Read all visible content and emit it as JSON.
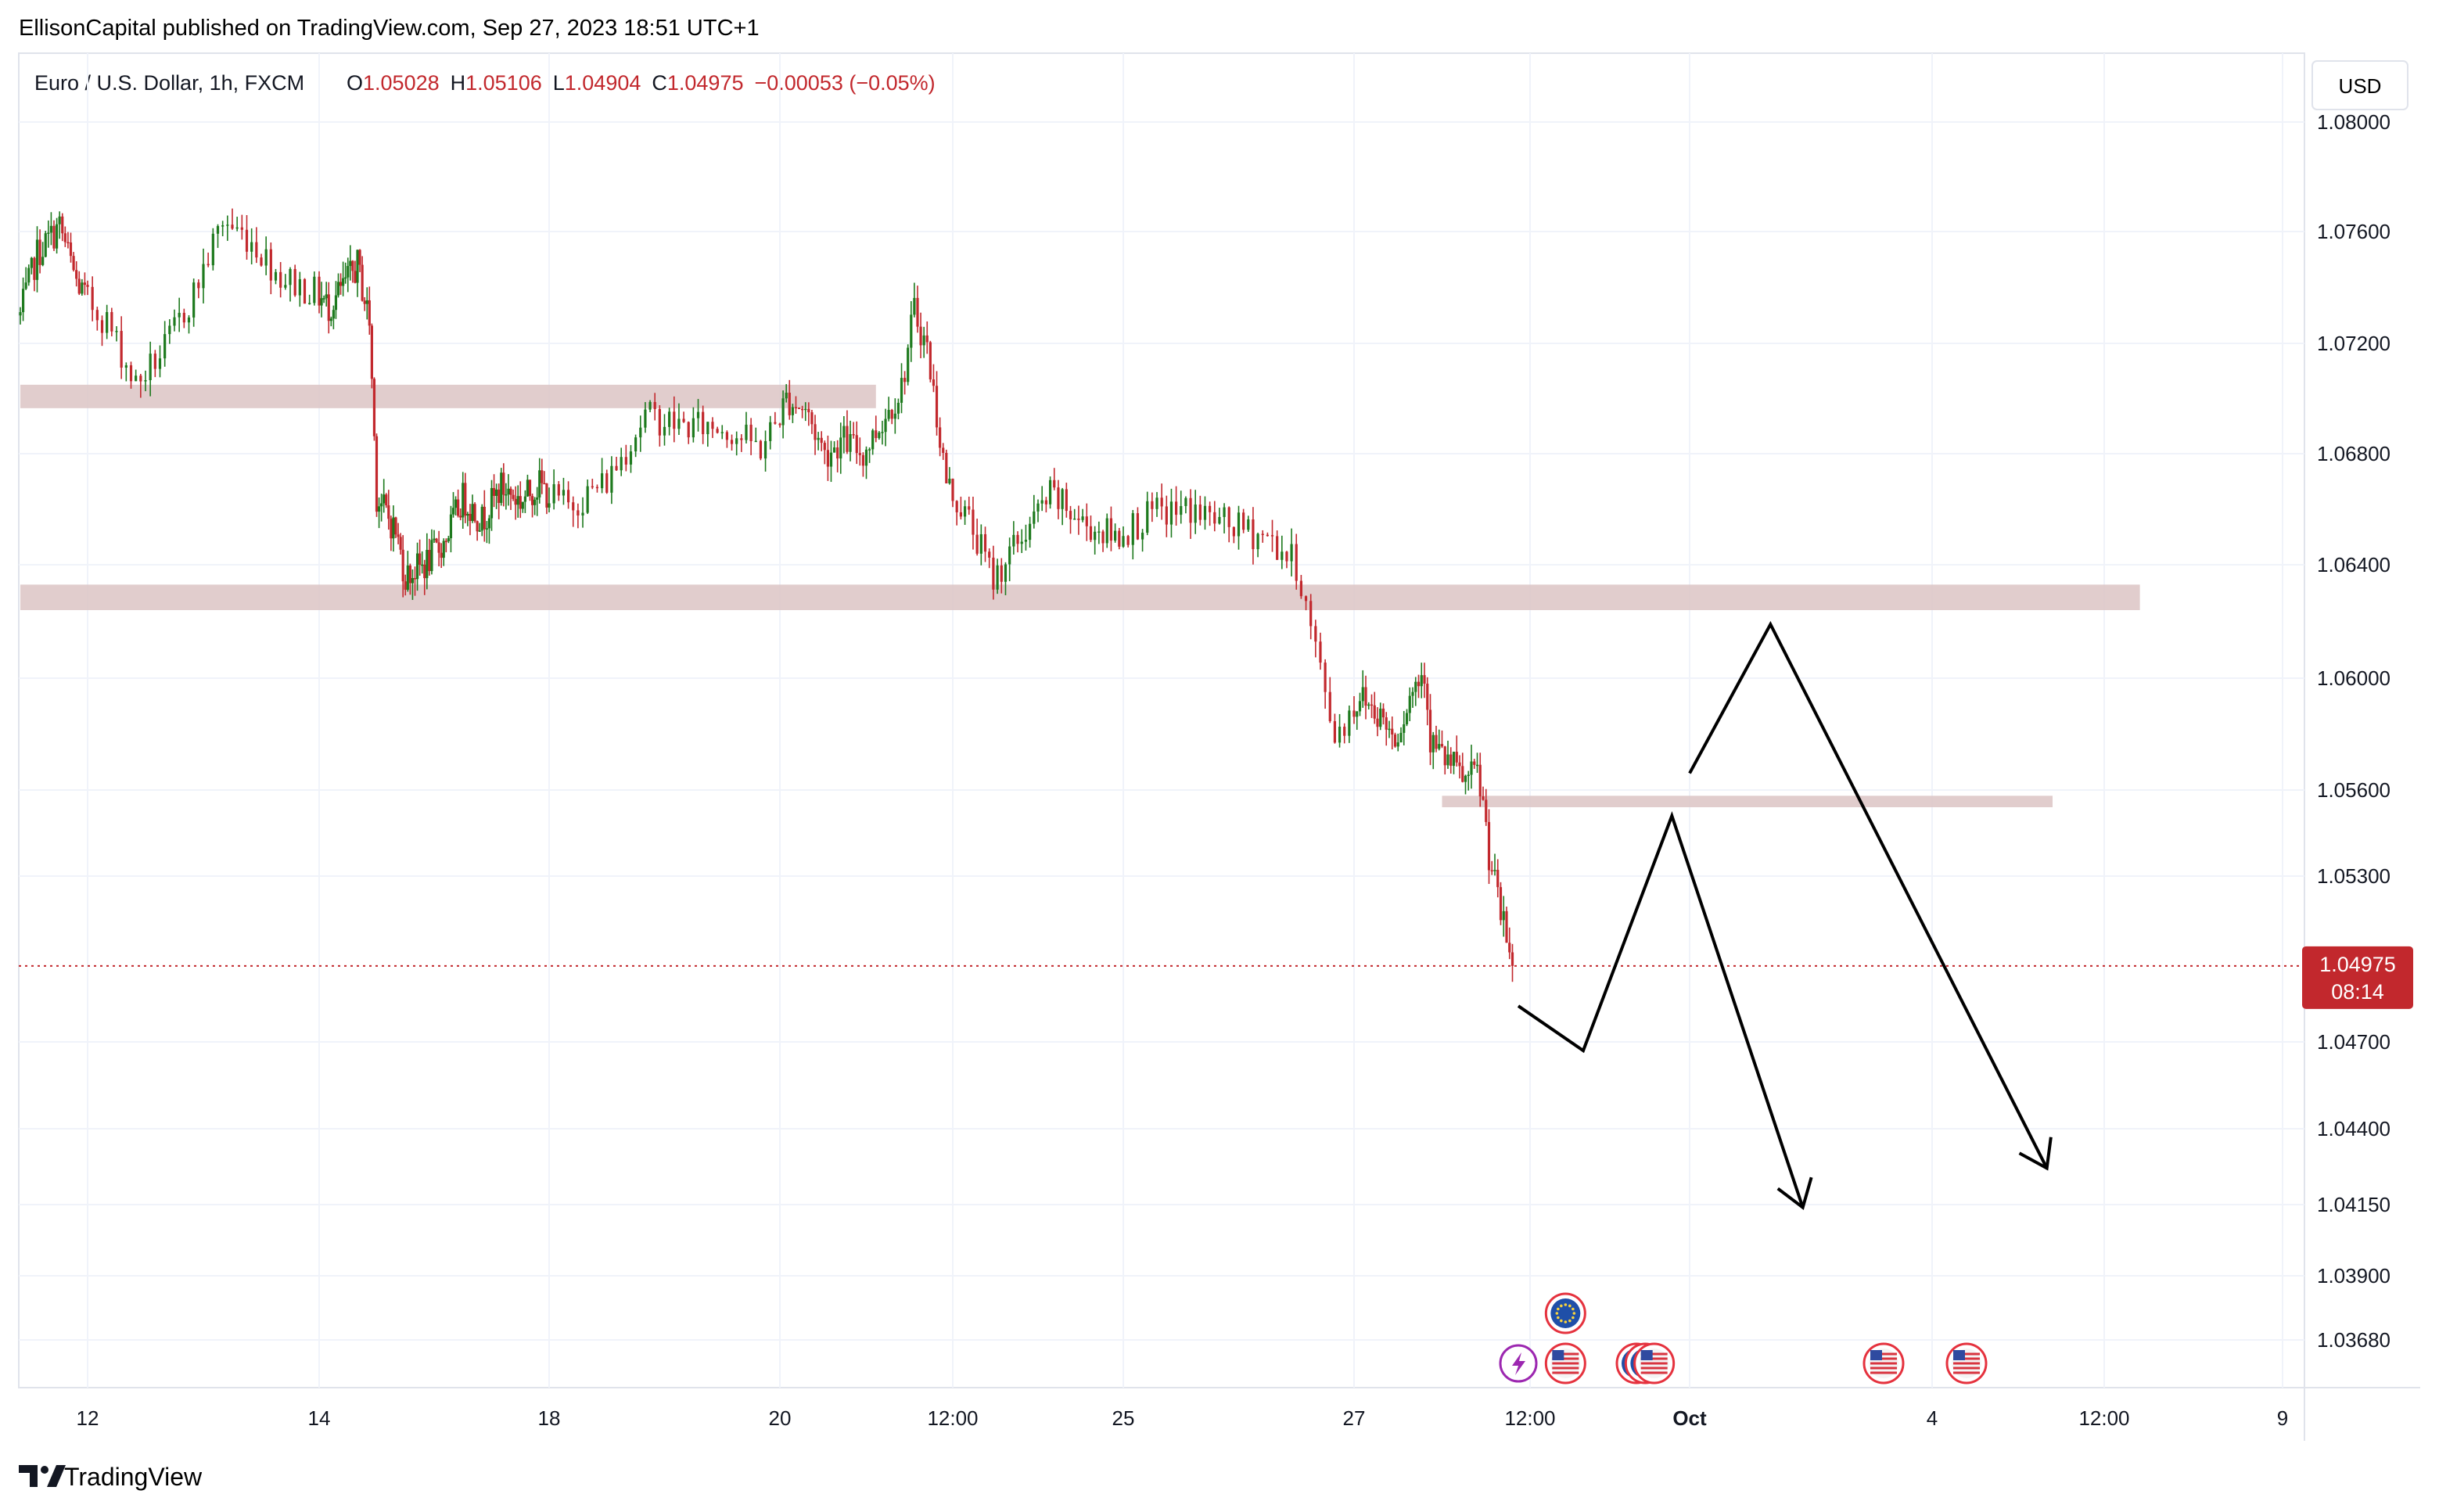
{
  "header": {
    "published_line": "EllisonCapital published on TradingView.com, Sep 27, 2023 18:51 UTC+1",
    "symbol": "Euro / U.S. Dollar, 1h, FXCM",
    "open_label": "O",
    "open": "1.05028",
    "high_label": "H",
    "high": "1.05106",
    "low_label": "L",
    "low": "1.04904",
    "close_label": "C",
    "close": "1.04975",
    "change": "−0.00053 (−0.05%)"
  },
  "currency_button": "USD",
  "footer": {
    "brand": "TradingView"
  },
  "colors": {
    "up": "#1e7a1e",
    "down": "#c2282d",
    "zone": "#dcc4c4",
    "price_tag": "#c2282d",
    "grid": "#f0f3fa"
  },
  "icons": [
    "eu-flag-icon",
    "us-flag-icon",
    "lightning-event-icon",
    "tradingview-logo-icon"
  ],
  "chart_data": {
    "type": "candlestick",
    "symbol": "EURUSD",
    "interval": "1h",
    "y_ticks": [
      "1.08000",
      "1.07600",
      "1.07200",
      "1.06800",
      "1.06400",
      "1.06000",
      "1.05600",
      "1.05300",
      "1.04700",
      "1.04400",
      "1.04150",
      "1.03900",
      "1.03680"
    ],
    "x_ticks": [
      "12",
      "14",
      "18",
      "20",
      "12:00",
      "25",
      "27",
      "12:00",
      "Oct",
      "4",
      "12:00",
      "9"
    ],
    "last_price": "1.04975",
    "countdown": "08:14",
    "grid": true,
    "ohlc_path": [
      [
        "Sep 11 00:00",
        1.073
      ],
      [
        "Sep 11 06:00",
        1.0752
      ],
      [
        "Sep 11 14:00",
        1.0762
      ],
      [
        "Sep 11 20:00",
        1.0742
      ],
      [
        "Sep 12 04:00",
        1.0728
      ],
      [
        "Sep 12 10:00",
        1.0705
      ],
      [
        "Sep 12 16:00",
        1.0718
      ],
      [
        "Sep 12 22:00",
        1.0738
      ],
      [
        "Sep 13 04:00",
        1.0764
      ],
      [
        "Sep 13 10:00",
        1.0757
      ],
      [
        "Sep 13 16:00",
        1.0744
      ],
      [
        "Sep 13 22:00",
        1.0739
      ],
      [
        "Sep 14 04:00",
        1.0733
      ],
      [
        "Sep 14 10:00",
        1.074
      ],
      [
        "Sep 14 16:00",
        1.0748
      ],
      [
        "Sep 14 21:00",
        1.0728
      ],
      [
        "Sep 15 00:00",
        1.0665
      ],
      [
        "Sep 15 08:00",
        1.0652
      ],
      [
        "Sep 15 12:00",
        1.0636
      ],
      [
        "Sep 15 20:00",
        1.064
      ],
      [
        "Sep 16 04:00",
        1.0648
      ],
      [
        "Sep 16 12:00",
        1.0664
      ],
      [
        "Sep 16 20:00",
        1.0656
      ],
      [
        "Sep 17 04:00",
        1.0668
      ],
      [
        "Sep 17 12:00",
        1.0663
      ],
      [
        "Sep 17 20:00",
        1.0669
      ],
      [
        "Sep 18 04:00",
        1.0661
      ],
      [
        "Sep 18 12:00",
        1.067
      ],
      [
        "Sep 18 20:00",
        1.0694
      ],
      [
        "Sep 19 04:00",
        1.069
      ],
      [
        "Sep 19 12:00",
        1.069
      ],
      [
        "Sep 19 20:00",
        1.0682
      ],
      [
        "Sep 20 02:00",
        1.07
      ],
      [
        "Sep 20 08:00",
        1.0696
      ],
      [
        "Sep 20 14:00",
        1.068
      ],
      [
        "Sep 20 20:00",
        1.0685
      ],
      [
        "Sep 21 02:00",
        1.068
      ],
      [
        "Sep 21 08:00",
        1.0692
      ],
      [
        "Sep 21 14:00",
        1.0704
      ],
      [
        "Sep 21 18:00",
        1.0732
      ],
      [
        "Sep 21 22:00",
        1.0718
      ],
      [
        "Sep 22 04:00",
        1.067
      ],
      [
        "Sep 22 10:00",
        1.0656
      ],
      [
        "Sep 22 16:00",
        1.0635
      ],
      [
        "Sep 22 22:00",
        1.0648
      ],
      [
        "Sep 23 06:00",
        1.0665
      ],
      [
        "Sep 23 14:00",
        1.0655
      ],
      [
        "Sep 23 22:00",
        1.065
      ],
      [
        "Sep 24 06:00",
        1.0658
      ],
      [
        "Sep 24 14:00",
        1.066
      ],
      [
        "Sep 24 22:00",
        1.0654
      ],
      [
        "Sep 25 06:00",
        1.065
      ],
      [
        "Sep 25 12:00",
        1.064
      ],
      [
        "Sep 25 16:00",
        1.061
      ],
      [
        "Sep 25 20:00",
        1.058
      ],
      [
        "Sep 26 02:00",
        1.0594
      ],
      [
        "Sep 26 08:00",
        1.0588
      ],
      [
        "Sep 26 14:00",
        1.0579
      ],
      [
        "Sep 26 20:00",
        1.0596
      ],
      [
        "Sep 27 00:00",
        1.0604
      ],
      [
        "Sep 27 02:00",
        1.0578
      ],
      [
        "Sep 27 06:00",
        1.0572
      ],
      [
        "Sep 27 10:00",
        1.0568
      ],
      [
        "Sep 27 14:00",
        1.0563
      ],
      [
        "Sep 27 18:00",
        1.0566
      ],
      [
        "Sep 27 20:00",
        1.0555
      ],
      [
        "Sep 27 22:00",
        1.0538
      ],
      [
        "Sep 28 02:00",
        1.0516
      ],
      [
        "Sep 28 05:00",
        1.0503
      ],
      [
        "Sep 28 06:00",
        1.0497
      ]
    ],
    "zones": [
      {
        "from": "Sep 11 00:00",
        "to": "Sep 21 06:00",
        "low": 1.06965,
        "high": 1.0705
      },
      {
        "from": "Sep 11 00:00",
        "to": "Oct 5 12:00",
        "low": 1.0624,
        "high": 1.0633
      },
      {
        "from": "Sep 27 06:00",
        "to": "Oct 4 06:00",
        "low": 1.0554,
        "high": 1.0558
      }
    ],
    "projections": [
      [
        [
          "Sep 28 08:00",
          1.0483
        ],
        [
          "Sep 29 00:00",
          1.0467
        ],
        [
          "Sep 29 20:00",
          1.0551
        ],
        [
          "Oct 1 04:00",
          1.0414
        ]
      ],
      [
        [
          "Sep 30 00:00",
          1.0566
        ],
        [
          "Sep 30 20:00",
          1.0619
        ],
        [
          "Oct 4 04:00",
          1.0427
        ]
      ]
    ],
    "events": [
      {
        "time": "Sep 28 08:00",
        "icon": "lightning-event-icon"
      },
      {
        "time": "Sep 28 20:00",
        "icon": "eu-flag-icon",
        "row": 2
      },
      {
        "time": "Sep 28 20:00",
        "icon": "us-flag-icon"
      },
      {
        "time": "Sep 29 12:00",
        "icon": "eu-flag-icon"
      },
      {
        "time": "Sep 29 14:00",
        "icon": "eu-flag-icon"
      },
      {
        "time": "Sep 29 16:00",
        "icon": "us-flag-icon"
      },
      {
        "time": "Oct 2 00:00",
        "icon": "us-flag-icon"
      },
      {
        "time": "Oct 3 00:00",
        "icon": "us-flag-icon"
      }
    ]
  }
}
